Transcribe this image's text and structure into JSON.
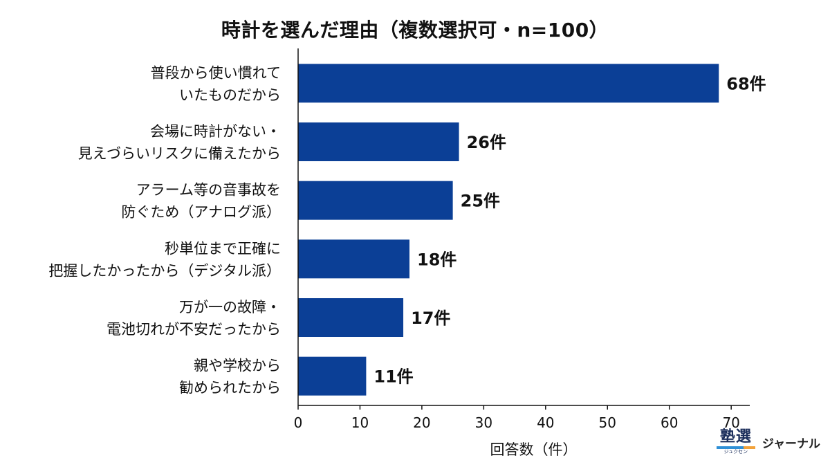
{
  "chart_data": {
    "type": "bar",
    "orientation": "horizontal",
    "title": "時計を選んだ理由（複数選択可・n=100）",
    "xlabel": "回答数（件）",
    "ylabel": "",
    "categories": [
      [
        "普段から使い慣れて",
        "いたものだから"
      ],
      [
        "会場に時計がない・",
        "見えづらいリスクに備えたから"
      ],
      [
        "アラーム等の音事故を",
        "防ぐため（アナログ派）"
      ],
      [
        "秒単位まで正確に",
        "把握したかったから（デジタル派）"
      ],
      [
        "万が一の故障・",
        "電池切れが不安だったから"
      ],
      [
        "親や学校から",
        "勧められたから"
      ]
    ],
    "values": [
      68,
      26,
      25,
      18,
      17,
      11
    ],
    "value_labels": [
      "68件",
      "26件",
      "25件",
      "18件",
      "17件",
      "11件"
    ],
    "xlim": [
      0,
      73
    ],
    "xticks": [
      0,
      10,
      20,
      30,
      40,
      50,
      60,
      70
    ],
    "grid": false,
    "bar_color": "#0b3f96"
  },
  "brand": {
    "logo_text": "塾選",
    "logo_subtext": "ジュクセン",
    "name": "ジャーナル"
  }
}
